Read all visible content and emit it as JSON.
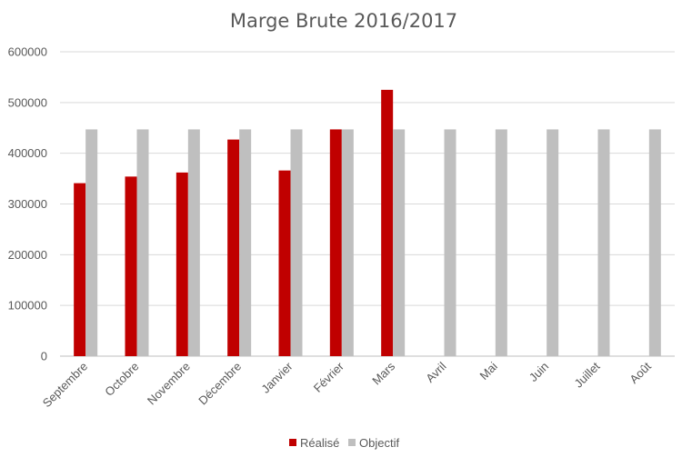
{
  "chart_data": {
    "type": "bar",
    "title": "Marge Brute 2016/2017",
    "xlabel": "",
    "ylabel": "",
    "categories": [
      "Septembre",
      "Octobre",
      "Novembre",
      "Décembre",
      "Janvier",
      "Février",
      "Mars",
      "Avril",
      "Mai",
      "Juin",
      "Juillet",
      "Août"
    ],
    "series": [
      {
        "name": "Réalisé",
        "color": "#c00000",
        "values": [
          341000,
          354000,
          362000,
          427000,
          366000,
          447000,
          525000,
          null,
          null,
          null,
          null,
          null
        ]
      },
      {
        "name": "Objectif",
        "color": "#bfbfbf",
        "values": [
          447000,
          447000,
          447000,
          447000,
          447000,
          447000,
          447000,
          447000,
          447000,
          447000,
          447000,
          447000
        ]
      }
    ],
    "ylim": [
      0,
      600000
    ],
    "yticks": [
      "0",
      "100000",
      "200000",
      "300000",
      "400000",
      "500000",
      "600000"
    ],
    "ytick_values": [
      0,
      100000,
      200000,
      300000,
      400000,
      500000,
      600000
    ],
    "grid": true,
    "legend_position": "bottom"
  }
}
